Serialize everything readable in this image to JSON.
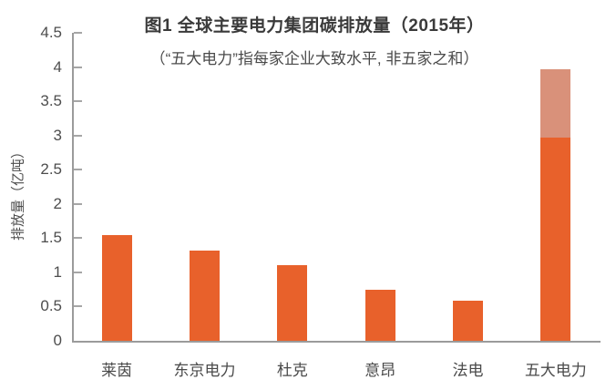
{
  "colors": {
    "bar_solid": "#e8612b",
    "bar_light": "#d9917a",
    "axis": "#9b9b9b",
    "tick": "#a6a6a6",
    "text": "#4a4a4a",
    "title": "#3a3a3a"
  },
  "chart_data": {
    "type": "bar",
    "title": "图1 全球主要电力集团碳排放量（2015年）",
    "subtitle": "（“五大电力”指每家企业大致水平, 非五家之和）",
    "ylabel": "排放量（亿吨）",
    "xlabel": "",
    "categories": [
      "莱茵",
      "东京电力",
      "杜克",
      "意昂",
      "法电",
      "五大电力"
    ],
    "series": [
      {
        "segment": "solid",
        "color": "#e8612b",
        "values": [
          1.55,
          1.32,
          1.1,
          0.74,
          0.58,
          2.97
        ]
      },
      {
        "segment": "light-top",
        "color": "#d9917a",
        "values": [
          0,
          0,
          0,
          0,
          0,
          1.0
        ]
      }
    ],
    "ylim": [
      0,
      4.5
    ],
    "yticks": [
      "4.5",
      "4",
      "3.5",
      "3",
      "2.5",
      "2",
      "1.5",
      "1",
      "0.5",
      "0"
    ],
    "grid": "off",
    "legend": "none",
    "note": "stacked top segment on 五大电力 shows range up to ~3.97"
  }
}
